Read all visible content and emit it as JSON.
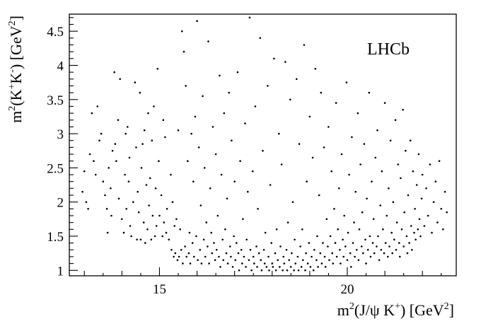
{
  "chart_data": {
    "type": "scatter",
    "title": "",
    "watermark": "LHCb",
    "xlabel": {
      "base": "m",
      "sup1": "2",
      "mid": "(J/ψ K",
      "sup2": "+",
      "end": ") [GeV",
      "sup3": "2",
      "close": "]"
    },
    "ylabel": {
      "base": "m",
      "sup1": "2",
      "mid": "(K",
      "sup2": "+",
      "mid2": "K",
      "sup3": "-",
      "end": ") [GeV",
      "sup4": "2",
      "close": "]"
    },
    "xlim": [
      12.6,
      22.9
    ],
    "ylim": [
      0.92,
      4.75
    ],
    "x_ticks": [
      15,
      20
    ],
    "x_tick_labels": [
      "15",
      "20"
    ],
    "y_ticks": [
      1,
      1.5,
      2,
      2.5,
      3,
      3.5,
      4,
      4.5
    ],
    "y_tick_labels": [
      "1",
      "1.5",
      "2",
      "2.5",
      "3",
      "3.5",
      "4",
      "4.5"
    ],
    "grid": false,
    "points": [
      [
        12.95,
        2.15
      ],
      [
        13.0,
        2.45
      ],
      [
        13.05,
        2.0
      ],
      [
        13.1,
        1.9
      ],
      [
        13.15,
        2.7
      ],
      [
        13.2,
        3.3
      ],
      [
        13.25,
        2.6
      ],
      [
        13.3,
        2.4
      ],
      [
        13.35,
        3.4
      ],
      [
        13.4,
        2.9
      ],
      [
        13.45,
        3.0
      ],
      [
        13.5,
        2.3
      ],
      [
        13.55,
        2.1
      ],
      [
        13.6,
        1.9
      ],
      [
        13.62,
        1.55
      ],
      [
        13.65,
        2.5
      ],
      [
        13.7,
        2.2
      ],
      [
        13.72,
        1.8
      ],
      [
        13.75,
        2.75
      ],
      [
        13.8,
        3.9
      ],
      [
        13.82,
        2.85
      ],
      [
        13.85,
        2.6
      ],
      [
        13.9,
        3.2
      ],
      [
        13.92,
        2.05
      ],
      [
        13.95,
        3.8
      ],
      [
        14.0,
        1.75
      ],
      [
        14.05,
        1.55
      ],
      [
        14.08,
        2.4
      ],
      [
        14.1,
        3.0
      ],
      [
        14.12,
        1.9
      ],
      [
        14.15,
        3.1
      ],
      [
        14.18,
        2.3
      ],
      [
        14.2,
        2.65
      ],
      [
        14.22,
        1.65
      ],
      [
        14.25,
        1.5
      ],
      [
        14.3,
        2.0
      ],
      [
        14.35,
        3.75
      ],
      [
        14.38,
        2.8
      ],
      [
        14.4,
        1.45
      ],
      [
        14.42,
        2.15
      ],
      [
        14.45,
        1.85
      ],
      [
        14.48,
        3.6
      ],
      [
        14.5,
        1.45
      ],
      [
        14.52,
        2.5
      ],
      [
        14.55,
        2.85
      ],
      [
        14.58,
        1.7
      ],
      [
        14.6,
        3.05
      ],
      [
        14.62,
        1.4
      ],
      [
        14.65,
        2.25
      ],
      [
        14.68,
        1.6
      ],
      [
        14.7,
        3.3
      ],
      [
        14.72,
        1.95
      ],
      [
        14.75,
        2.35
      ],
      [
        14.78,
        1.45
      ],
      [
        14.8,
        2.9
      ],
      [
        14.82,
        1.8
      ],
      [
        14.85,
        3.4
      ],
      [
        14.88,
        1.5
      ],
      [
        14.9,
        2.2
      ],
      [
        14.92,
        1.65
      ],
      [
        14.95,
        3.95
      ],
      [
        14.98,
        2.6
      ],
      [
        15.0,
        1.8
      ],
      [
        15.05,
        2.1
      ],
      [
        15.08,
        1.5
      ],
      [
        15.1,
        3.2
      ],
      [
        15.12,
        1.7
      ],
      [
        15.15,
        2.95
      ],
      [
        15.18,
        1.55
      ],
      [
        15.2,
        1.9
      ],
      [
        15.25,
        1.45
      ],
      [
        15.3,
        2.4
      ],
      [
        15.32,
        1.3
      ],
      [
        15.35,
        2.0
      ],
      [
        15.38,
        1.2
      ],
      [
        15.4,
        1.65
      ],
      [
        15.42,
        1.25
      ],
      [
        15.45,
        1.75
      ],
      [
        15.48,
        1.15
      ],
      [
        15.5,
        3.05
      ],
      [
        15.52,
        1.2
      ],
      [
        15.55,
        1.6
      ],
      [
        15.58,
        1.3
      ],
      [
        15.6,
        4.5
      ],
      [
        15.62,
        1.1
      ],
      [
        15.65,
        4.2
      ],
      [
        15.68,
        1.35
      ],
      [
        15.7,
        3.7
      ],
      [
        15.72,
        1.2
      ],
      [
        15.75,
        2.6
      ],
      [
        15.78,
        1.25
      ],
      [
        15.8,
        1.55
      ],
      [
        15.82,
        1.1
      ],
      [
        15.85,
        3.0
      ],
      [
        15.88,
        1.4
      ],
      [
        15.9,
        2.3
      ],
      [
        15.92,
        1.2
      ],
      [
        15.95,
        3.25
      ],
      [
        15.98,
        1.5
      ],
      [
        16.0,
        4.65
      ],
      [
        16.02,
        1.15
      ],
      [
        16.05,
        2.8
      ],
      [
        16.08,
        1.3
      ],
      [
        16.1,
        1.95
      ],
      [
        16.12,
        1.1
      ],
      [
        16.15,
        3.55
      ],
      [
        16.18,
        1.45
      ],
      [
        16.2,
        2.5
      ],
      [
        16.22,
        1.2
      ],
      [
        16.25,
        1.7
      ],
      [
        16.28,
        1.35
      ],
      [
        16.3,
        4.35
      ],
      [
        16.32,
        1.1
      ],
      [
        16.35,
        2.2
      ],
      [
        16.38,
        1.55
      ],
      [
        16.4,
        1.25
      ],
      [
        16.42,
        3.1
      ],
      [
        16.45,
        1.4
      ],
      [
        16.48,
        1.15
      ],
      [
        16.5,
        2.7
      ],
      [
        16.52,
        1.3
      ],
      [
        16.55,
        1.8
      ],
      [
        16.58,
        1.2
      ],
      [
        16.6,
        3.85
      ],
      [
        16.62,
        1.05
      ],
      [
        16.65,
        2.4
      ],
      [
        16.68,
        1.45
      ],
      [
        16.7,
        1.15
      ],
      [
        16.72,
        3.3
      ],
      [
        16.75,
        1.6
      ],
      [
        16.78,
        1.25
      ],
      [
        16.8,
        2.05
      ],
      [
        16.82,
        1.1
      ],
      [
        16.85,
        3.6
      ],
      [
        16.88,
        1.35
      ],
      [
        16.9,
        1.2
      ],
      [
        16.92,
        2.9
      ],
      [
        16.95,
        1.05
      ],
      [
        16.98,
        1.5
      ],
      [
        17.0,
        2.3
      ],
      [
        17.02,
        1.15
      ],
      [
        17.05,
        1.4
      ],
      [
        17.08,
        3.9
      ],
      [
        17.1,
        1.25
      ],
      [
        17.12,
        1.0
      ],
      [
        17.15,
        2.6
      ],
      [
        17.18,
        1.3
      ],
      [
        17.2,
        1.1
      ],
      [
        17.22,
        1.75
      ],
      [
        17.25,
        1.2
      ],
      [
        17.28,
        3.15
      ],
      [
        17.3,
        1.05
      ],
      [
        17.32,
        1.45
      ],
      [
        17.35,
        2.15
      ],
      [
        17.38,
        1.15
      ],
      [
        17.4,
        4.7
      ],
      [
        17.42,
        1.3
      ],
      [
        17.45,
        1.0
      ],
      [
        17.48,
        2.45
      ],
      [
        17.5,
        1.2
      ],
      [
        17.52,
        1.1
      ],
      [
        17.55,
        3.4
      ],
      [
        17.58,
        1.35
      ],
      [
        17.6,
        1.05
      ],
      [
        17.62,
        1.9
      ],
      [
        17.65,
        1.25
      ],
      [
        17.68,
        4.4
      ],
      [
        17.7,
        1.15
      ],
      [
        17.72,
        1.0
      ],
      [
        17.75,
        2.75
      ],
      [
        17.78,
        1.3
      ],
      [
        17.8,
        1.1
      ],
      [
        17.82,
        1.55
      ],
      [
        17.85,
        1.05
      ],
      [
        17.88,
        3.7
      ],
      [
        17.9,
        1.2
      ],
      [
        17.92,
        1.0
      ],
      [
        17.95,
        2.25
      ],
      [
        17.98,
        1.4
      ],
      [
        18.0,
        1.1
      ],
      [
        18.02,
        1.05
      ],
      [
        18.05,
        4.1
      ],
      [
        18.08,
        1.25
      ],
      [
        18.1,
        1.0
      ],
      [
        18.12,
        1.6
      ],
      [
        18.15,
        1.15
      ],
      [
        18.18,
        3.0
      ],
      [
        18.2,
        1.05
      ],
      [
        18.22,
        1.35
      ],
      [
        18.25,
        2.55
      ],
      [
        18.28,
        1.0
      ],
      [
        18.3,
        1.2
      ],
      [
        18.32,
        1.1
      ],
      [
        18.35,
        4.05
      ],
      [
        18.38,
        1.3
      ],
      [
        18.4,
        1.0
      ],
      [
        18.42,
        1.7
      ],
      [
        18.45,
        1.15
      ],
      [
        18.48,
        3.5
      ],
      [
        18.5,
        1.05
      ],
      [
        18.52,
        1.25
      ],
      [
        18.55,
        2.0
      ],
      [
        18.58,
        1.0
      ],
      [
        18.6,
        1.45
      ],
      [
        18.62,
        1.1
      ],
      [
        18.65,
        3.8
      ],
      [
        18.68,
        1.2
      ],
      [
        18.7,
        1.0
      ],
      [
        18.72,
        2.85
      ],
      [
        18.75,
        1.35
      ],
      [
        18.78,
        1.05
      ],
      [
        18.8,
        1.6
      ],
      [
        18.82,
        1.15
      ],
      [
        18.85,
        4.3
      ],
      [
        18.88,
        1.0
      ],
      [
        18.9,
        1.25
      ],
      [
        18.92,
        2.3
      ],
      [
        18.95,
        1.1
      ],
      [
        18.98,
        1.4
      ],
      [
        19.0,
        3.25
      ],
      [
        19.02,
        1.05
      ],
      [
        19.05,
        1.2
      ],
      [
        19.08,
        2.65
      ],
      [
        19.1,
        1.0
      ],
      [
        19.12,
        1.3
      ],
      [
        19.15,
        3.95
      ],
      [
        19.18,
        1.15
      ],
      [
        19.2,
        1.5
      ],
      [
        19.22,
        1.05
      ],
      [
        19.25,
        2.1
      ],
      [
        19.28,
        1.25
      ],
      [
        19.3,
        3.6
      ],
      [
        19.32,
        1.1
      ],
      [
        19.35,
        1.4
      ],
      [
        19.38,
        2.8
      ],
      [
        19.4,
        1.2
      ],
      [
        19.42,
        1.05
      ],
      [
        19.45,
        1.75
      ],
      [
        19.48,
        1.35
      ],
      [
        19.5,
        3.1
      ],
      [
        19.52,
        1.15
      ],
      [
        19.55,
        1.5
      ],
      [
        19.58,
        2.45
      ],
      [
        19.6,
        1.25
      ],
      [
        19.62,
        1.1
      ],
      [
        19.65,
        1.9
      ],
      [
        19.68,
        1.4
      ],
      [
        19.7,
        3.45
      ],
      [
        19.72,
        1.2
      ],
      [
        19.75,
        1.6
      ],
      [
        19.78,
        2.2
      ],
      [
        19.8,
        1.3
      ],
      [
        19.82,
        1.1
      ],
      [
        19.85,
        2.7
      ],
      [
        19.88,
        1.45
      ],
      [
        19.9,
        1.2
      ],
      [
        19.92,
        1.8
      ],
      [
        19.95,
        1.35
      ],
      [
        19.98,
        3.75
      ],
      [
        20.0,
        1.15
      ],
      [
        20.02,
        1.55
      ],
      [
        20.05,
        2.4
      ],
      [
        20.08,
        1.25
      ],
      [
        20.1,
        1.05
      ],
      [
        20.12,
        2.95
      ],
      [
        20.15,
        1.4
      ],
      [
        20.18,
        1.7
      ],
      [
        20.2,
        1.2
      ],
      [
        20.22,
        2.15
      ],
      [
        20.25,
        1.3
      ],
      [
        20.28,
        3.3
      ],
      [
        20.3,
        1.15
      ],
      [
        20.32,
        1.6
      ],
      [
        20.35,
        2.55
      ],
      [
        20.38,
        1.35
      ],
      [
        20.4,
        1.85
      ],
      [
        20.42,
        1.25
      ],
      [
        20.45,
        2.85
      ],
      [
        20.48,
        1.45
      ],
      [
        20.5,
        1.1
      ],
      [
        20.52,
        2.05
      ],
      [
        20.55,
        1.3
      ],
      [
        20.58,
        3.6
      ],
      [
        20.6,
        1.5
      ],
      [
        20.62,
        1.2
      ],
      [
        20.65,
        2.3
      ],
      [
        20.68,
        1.4
      ],
      [
        20.7,
        1.75
      ],
      [
        20.72,
        1.25
      ],
      [
        20.75,
        2.65
      ],
      [
        20.78,
        1.35
      ],
      [
        20.8,
        3.05
      ],
      [
        20.82,
        1.5
      ],
      [
        20.85,
        1.15
      ],
      [
        20.88,
        1.95
      ],
      [
        20.9,
        1.3
      ],
      [
        20.92,
        2.45
      ],
      [
        20.95,
        1.6
      ],
      [
        20.98,
        1.25
      ],
      [
        21.0,
        3.45
      ],
      [
        21.02,
        1.4
      ],
      [
        21.05,
        1.8
      ],
      [
        21.08,
        1.2
      ],
      [
        21.1,
        2.2
      ],
      [
        21.12,
        1.35
      ],
      [
        21.15,
        2.9
      ],
      [
        21.18,
        1.55
      ],
      [
        21.2,
        1.25
      ],
      [
        21.22,
        2.0
      ],
      [
        21.25,
        1.45
      ],
      [
        21.28,
        3.2
      ],
      [
        21.3,
        1.3
      ],
      [
        21.32,
        1.7
      ],
      [
        21.35,
        2.55
      ],
      [
        21.38,
        1.4
      ],
      [
        21.4,
        1.2
      ],
      [
        21.42,
        2.35
      ],
      [
        21.45,
        1.6
      ],
      [
        21.48,
        3.35
      ],
      [
        21.5,
        1.35
      ],
      [
        21.52,
        1.85
      ],
      [
        21.55,
        2.75
      ],
      [
        21.58,
        1.5
      ],
      [
        21.6,
        1.25
      ],
      [
        21.62,
        2.1
      ],
      [
        21.65,
        1.4
      ],
      [
        21.68,
        2.9
      ],
      [
        21.7,
        1.65
      ],
      [
        21.72,
        1.3
      ],
      [
        21.75,
        2.45
      ],
      [
        21.78,
        1.55
      ],
      [
        21.8,
        1.9
      ],
      [
        21.82,
        1.45
      ],
      [
        21.85,
        2.25
      ],
      [
        21.88,
        1.6
      ],
      [
        21.9,
        2.7
      ],
      [
        21.92,
        1.75
      ],
      [
        21.95,
        1.5
      ],
      [
        21.98,
        2.05
      ],
      [
        22.0,
        2.4
      ],
      [
        22.05,
        1.65
      ],
      [
        22.1,
        2.2
      ],
      [
        22.15,
        1.8
      ],
      [
        22.2,
        2.55
      ],
      [
        22.25,
        1.55
      ],
      [
        22.3,
        2.0
      ],
      [
        22.35,
        2.3
      ],
      [
        22.4,
        1.7
      ],
      [
        22.45,
        2.6
      ],
      [
        22.5,
        1.9
      ],
      [
        22.55,
        1.6
      ],
      [
        22.6,
        2.15
      ],
      [
        22.65,
        1.85
      ]
    ]
  }
}
